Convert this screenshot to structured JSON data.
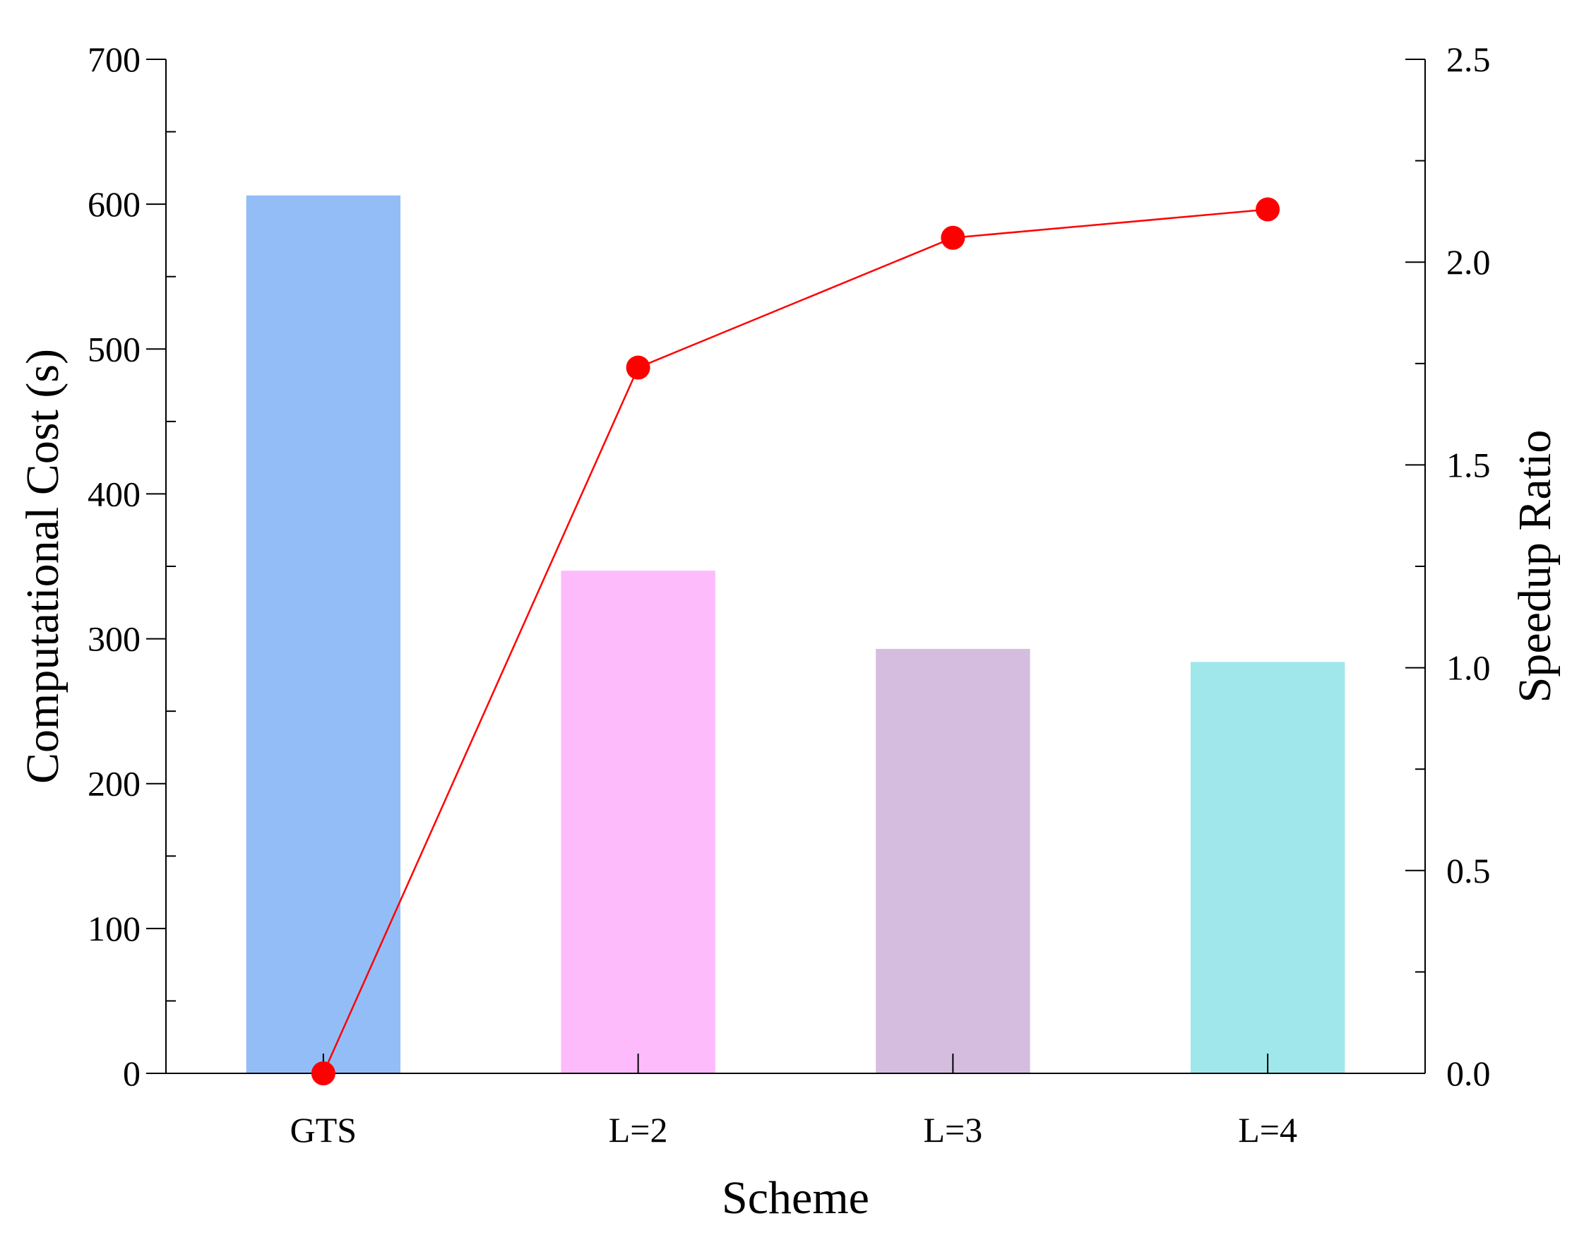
{
  "chart_data": {
    "type": "bar",
    "title": "",
    "xlabel": "Scheme",
    "ylabel": "Computational Cost (s)",
    "y2label": "Speedup Ratio",
    "categories": [
      "GTS",
      "L=2",
      "L=3",
      "L=4"
    ],
    "ylim": [
      0,
      700
    ],
    "y2lim": [
      0,
      2.5
    ],
    "yticks": [
      "0",
      "100",
      "200",
      "300",
      "400",
      "500",
      "600",
      "700"
    ],
    "y2ticks": [
      "0.0",
      "0.5",
      "1.0",
      "1.5",
      "2.0",
      "2.5"
    ],
    "grid": false,
    "legend": "none",
    "series": [
      {
        "type": "bar",
        "axis": "left",
        "values": [
          606,
          347,
          293,
          284
        ],
        "colors": [
          "#93bdf7",
          "#fdbbfb",
          "#d5bde0",
          "#a0e7ec"
        ]
      },
      {
        "type": "line",
        "axis": "right",
        "values": [
          0.0,
          1.74,
          2.06,
          2.13
        ],
        "color": "#ff0000",
        "marker": "circle"
      }
    ]
  }
}
